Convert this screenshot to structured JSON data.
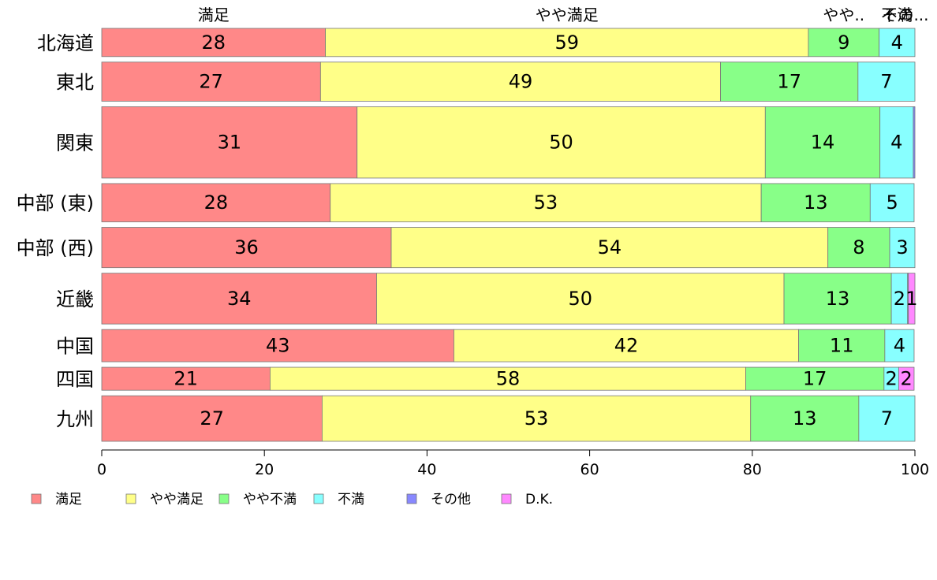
{
  "chart_data": {
    "type": "bar",
    "orientation": "horizontal",
    "stacked": true,
    "categories": [
      "北海道",
      "東北",
      "関東",
      "中部 (東)",
      "中部 (西)",
      "近畿",
      "中国",
      "四国",
      "九州"
    ],
    "series": [
      {
        "name": "満足",
        "color": "#FF8888",
        "values": [
          27.5,
          26.9,
          31.4,
          28.1,
          35.6,
          33.8,
          43.3,
          20.7,
          27.1
        ]
      },
      {
        "name": "やや満足",
        "color": "#FFFF88",
        "values": [
          59.4,
          49.2,
          50.2,
          53.0,
          53.7,
          50.1,
          42.4,
          58.5,
          52.7
        ]
      },
      {
        "name": "やや不満",
        "color": "#88FF88",
        "values": [
          8.7,
          16.9,
          14.1,
          13.4,
          7.6,
          13.2,
          10.6,
          17.0,
          13.3
        ]
      },
      {
        "name": "不満",
        "color": "#88FFFF",
        "values": [
          4.4,
          7.0,
          4.1,
          5.4,
          3.1,
          2.0,
          3.6,
          1.8,
          6.9
        ]
      },
      {
        "name": "その他",
        "color": "#8888FF",
        "values": [
          0,
          0,
          0.2,
          0,
          0,
          0.1,
          0,
          0,
          0
        ]
      },
      {
        "name": "D.K.",
        "color": "#FF88FF",
        "values": [
          0,
          0,
          0,
          0,
          0,
          0.8,
          0,
          1.9,
          0
        ]
      }
    ],
    "segment_labels": [
      [
        "28",
        "59",
        "9",
        "4",
        "",
        ""
      ],
      [
        "27",
        "49",
        "17",
        "7",
        "",
        ""
      ],
      [
        "31",
        "50",
        "14",
        "4",
        "",
        ""
      ],
      [
        "28",
        "53",
        "13",
        "5",
        "",
        ""
      ],
      [
        "36",
        "54",
        "8",
        "3",
        "",
        ""
      ],
      [
        "34",
        "50",
        "13",
        "2",
        "",
        "1"
      ],
      [
        "43",
        "42",
        "11",
        "4",
        "",
        ""
      ],
      [
        "21",
        "58",
        "17",
        "2",
        "",
        "2"
      ],
      [
        "27",
        "53",
        "13",
        "7",
        "",
        ""
      ]
    ],
    "bar_relative_heights": [
      0.7,
      0.97,
      1.77,
      0.95,
      1.0,
      1.26,
      0.8,
      0.57,
      1.13
    ],
    "top_labels": [
      "満足",
      "やや満足",
      "やや..",
      "不満",
      "その..."
    ],
    "xlim": [
      0,
      100
    ],
    "xticks": [
      0,
      20,
      40,
      60,
      80,
      100
    ],
    "xlabel": "",
    "ylabel": "",
    "grid": false,
    "legend": {
      "position": "bottom",
      "items": [
        "満足",
        "やや満足",
        "やや不満",
        "不満",
        "その他",
        "D.K."
      ]
    }
  }
}
